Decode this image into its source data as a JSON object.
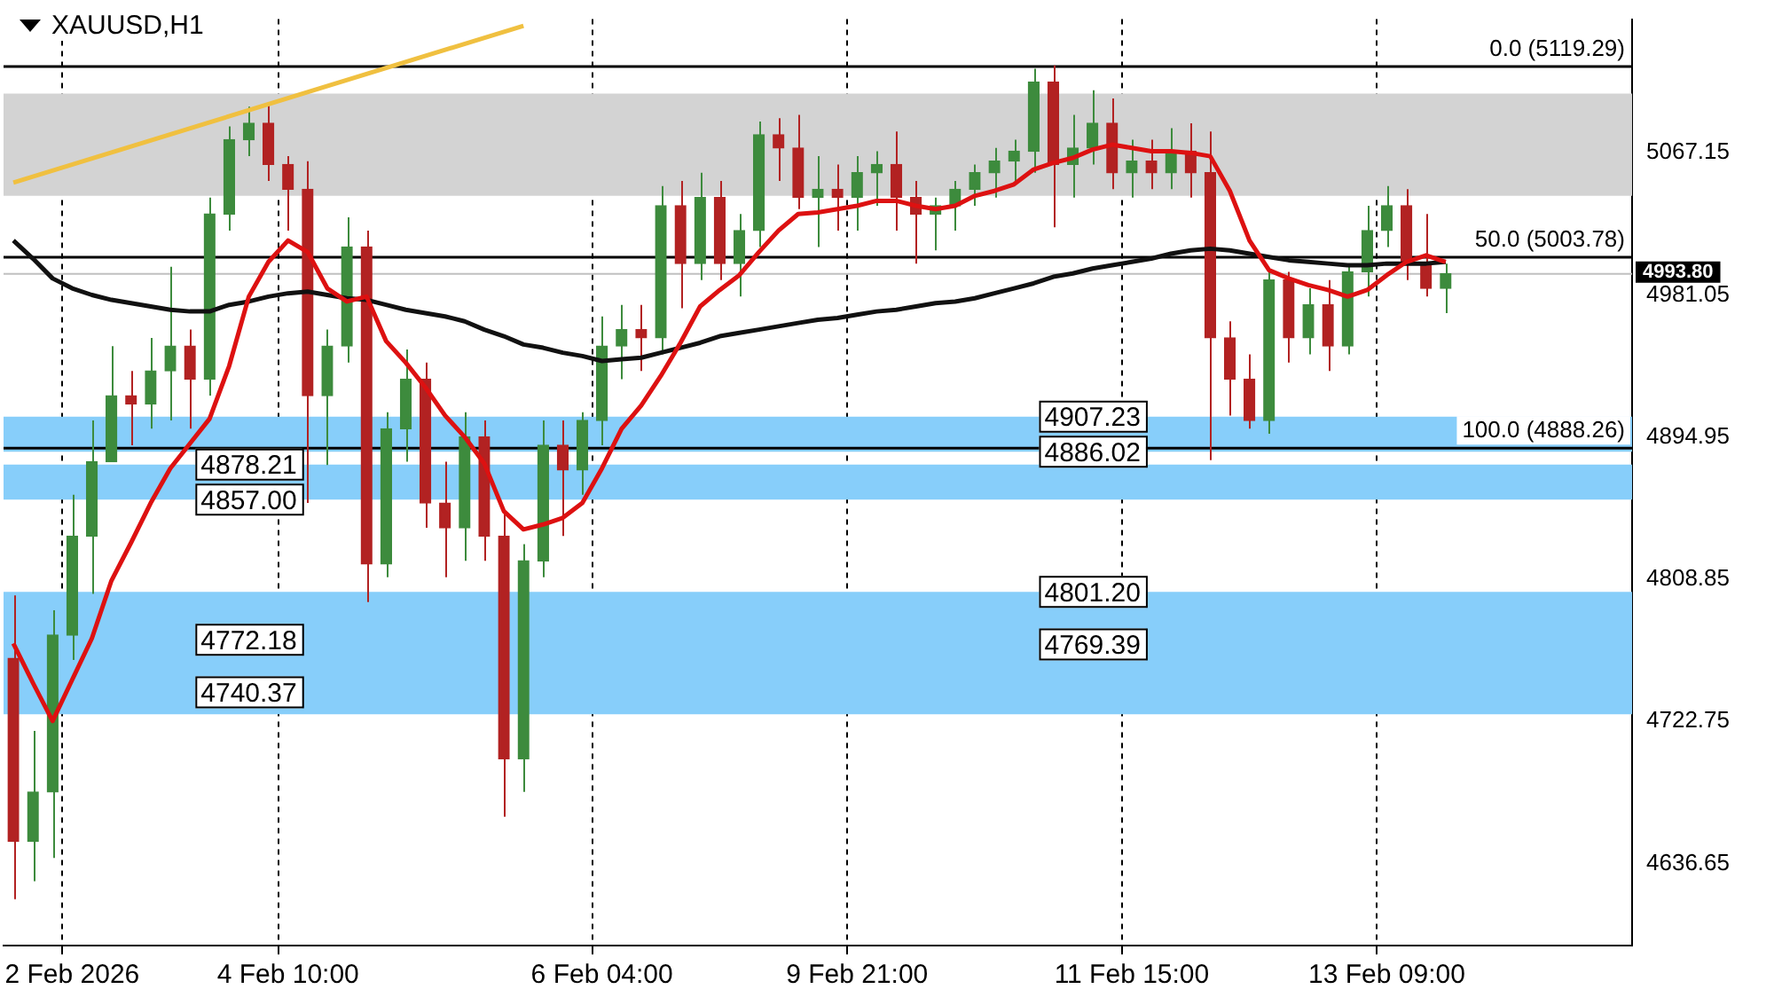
{
  "chart_data": {
    "type": "candlestick",
    "title": "XAUUSD,H1",
    "categories": [
      null,
      null,
      null,
      "2 Feb 2026",
      null,
      null,
      null,
      null,
      null,
      null,
      null,
      null,
      null,
      null,
      "4 Feb 10:00",
      null,
      null,
      null,
      null,
      null,
      null,
      null,
      null,
      null,
      null,
      null,
      null,
      null,
      null,
      null,
      "6 Feb 04:00",
      null,
      null,
      null,
      null,
      null,
      null,
      null,
      null,
      null,
      null,
      null,
      null,
      "9 Feb 21:00",
      null,
      null,
      null,
      null,
      null,
      null,
      null,
      null,
      null,
      null,
      null,
      null,
      null,
      "11 Feb 15:00",
      null,
      null,
      null,
      null,
      null,
      null,
      null,
      null,
      null,
      null,
      null,
      null,
      "13 Feb 09:00",
      null,
      null,
      null,
      null,
      null,
      null,
      null,
      null,
      null,
      null,
      null,
      null
    ],
    "ohlc": [
      [
        4761,
        4799,
        4615,
        4650
      ],
      [
        4650,
        4717,
        4626,
        4680
      ],
      [
        4680,
        4790,
        4640,
        4775
      ],
      [
        4775,
        4860,
        4760,
        4835
      ],
      [
        4835,
        4905,
        4800,
        4880
      ],
      [
        4880,
        4950,
        4880,
        4920
      ],
      [
        4920,
        4935,
        4890,
        4915
      ],
      [
        4915,
        4955,
        4900,
        4935
      ],
      [
        4935,
        4998,
        4905,
        4950
      ],
      [
        4950,
        4960,
        4900,
        4930
      ],
      [
        4930,
        5040,
        4920,
        5030
      ],
      [
        5030,
        5083,
        5020,
        5075
      ],
      [
        5075,
        5095,
        5065,
        5085
      ],
      [
        5085,
        5097,
        5050,
        5060
      ],
      [
        5060,
        5065,
        5020,
        5045
      ],
      [
        5045,
        5062,
        4855,
        4920
      ],
      [
        4920,
        4960,
        4878,
        4950
      ],
      [
        4950,
        5028,
        4940,
        5010
      ],
      [
        5010,
        5020,
        4795,
        4818
      ],
      [
        4818,
        4910,
        4810,
        4900
      ],
      [
        4900,
        4948,
        4880,
        4930
      ],
      [
        4930,
        4940,
        4840,
        4855
      ],
      [
        4855,
        4880,
        4810,
        4840
      ],
      [
        4840,
        4910,
        4820,
        4895
      ],
      [
        4895,
        4905,
        4820,
        4835
      ],
      [
        4835,
        4850,
        4665,
        4700
      ],
      [
        4700,
        4830,
        4680,
        4820
      ],
      [
        4820,
        4905,
        4810,
        4890
      ],
      [
        4890,
        4905,
        4835,
        4875
      ],
      [
        4875,
        4910,
        4860,
        4905
      ],
      [
        4905,
        4968,
        4890,
        4950
      ],
      [
        4950,
        4975,
        4930,
        4960
      ],
      [
        4960,
        4975,
        4935,
        4955
      ],
      [
        4955,
        5047,
        4945,
        5035
      ],
      [
        5035,
        5050,
        4973,
        5000
      ],
      [
        5000,
        5055,
        4990,
        5040
      ],
      [
        5040,
        5050,
        4990,
        5000
      ],
      [
        5000,
        5030,
        4980,
        5020
      ],
      [
        5020,
        5086,
        5010,
        5078
      ],
      [
        5078,
        5088,
        5050,
        5070
      ],
      [
        5070,
        5090,
        5033,
        5040
      ],
      [
        5040,
        5065,
        5010,
        5045
      ],
      [
        5045,
        5060,
        5020,
        5040
      ],
      [
        5040,
        5065,
        5020,
        5055
      ],
      [
        5055,
        5068,
        5035,
        5060
      ],
      [
        5060,
        5080,
        5020,
        5040
      ],
      [
        5040,
        5050,
        5000,
        5030
      ],
      [
        5030,
        5040,
        5008,
        5035
      ],
      [
        5035,
        5050,
        5020,
        5045
      ],
      [
        5045,
        5060,
        5035,
        5055
      ],
      [
        5055,
        5070,
        5040,
        5062
      ],
      [
        5062,
        5075,
        5050,
        5068
      ],
      [
        5068,
        5118,
        5055,
        5110
      ],
      [
        5110,
        5120,
        5022,
        5060
      ],
      [
        5060,
        5090,
        5040,
        5070
      ],
      [
        5070,
        5105,
        5060,
        5085
      ],
      [
        5085,
        5100,
        5045,
        5055
      ],
      [
        5055,
        5075,
        5040,
        5062
      ],
      [
        5062,
        5075,
        5045,
        5055
      ],
      [
        5055,
        5082,
        5045,
        5068
      ],
      [
        5068,
        5085,
        5040,
        5055
      ],
      [
        5055,
        5080,
        4881,
        4955
      ],
      [
        4955,
        4965,
        4908,
        4930
      ],
      [
        4930,
        4945,
        4900,
        4905
      ],
      [
        4905,
        4995,
        4897,
        4990
      ],
      [
        4990,
        4995,
        4940,
        4955
      ],
      [
        4955,
        4985,
        4945,
        4975
      ],
      [
        4975,
        4990,
        4935,
        4950
      ],
      [
        4950,
        5000,
        4945,
        4995
      ],
      [
        4995,
        5035,
        4980,
        5020
      ],
      [
        5020,
        5047,
        5010,
        5035
      ],
      [
        5035,
        5045,
        4990,
        5000
      ],
      [
        5000,
        5030,
        4980,
        4985
      ],
      [
        4985,
        5000,
        4970,
        4993.8
      ],
      null,
      null,
      null,
      null,
      null,
      null,
      null,
      null,
      null
    ],
    "colors": [
      "#b22222",
      "#3d8b3d",
      "#3d8b3d",
      "#3d8b3d",
      "#3d8b3d",
      "#3d8b3d",
      "#b22222",
      "#3d8b3d",
      "#3d8b3d",
      "#b22222",
      "#3d8b3d",
      "#3d8b3d",
      "#3d8b3d",
      "#b22222",
      "#b22222",
      "#b22222",
      "#3d8b3d",
      "#3d8b3d",
      "#b22222",
      "#3d8b3d",
      "#3d8b3d",
      "#b22222",
      "#b22222",
      "#3d8b3d",
      "#b22222",
      "#b22222",
      "#3d8b3d",
      "#3d8b3d",
      "#b22222",
      "#3d8b3d",
      "#3d8b3d",
      "#3d8b3d",
      "#b22222",
      "#3d8b3d",
      "#b22222",
      "#3d8b3d",
      "#b22222",
      "#3d8b3d",
      "#3d8b3d",
      "#b22222",
      "#b22222",
      "#3d8b3d",
      "#b22222",
      "#3d8b3d",
      "#3d8b3d",
      "#b22222",
      "#b22222",
      "#3d8b3d",
      "#3d8b3d",
      "#3d8b3d",
      "#3d8b3d",
      "#3d8b3d",
      "#3d8b3d",
      "#b22222",
      "#3d8b3d",
      "#3d8b3d",
      "#b22222",
      "#3d8b3d",
      "#b22222",
      "#3d8b3d",
      "#b22222",
      "#b22222",
      "#b22222",
      "#b22222",
      "#3d8b3d",
      "#b22222",
      "#3d8b3d",
      "#b22222",
      "#3d8b3d",
      "#3d8b3d",
      "#3d8b3d",
      "#b22222",
      "#b22222",
      "#3d8b3d",
      null,
      null,
      null,
      null,
      null,
      null,
      null,
      null,
      null
    ],
    "series": [
      {
        "type": "line",
        "color": "#dd1111",
        "values": [
          4770,
          4746,
          4723,
          4748,
          4773,
          4808,
          4831,
          4855,
          4876,
          4891,
          4906,
          4938,
          4980,
          5001,
          5014,
          5007,
          4985,
          4977,
          4980,
          4953,
          4940,
          4925,
          4908,
          4895,
          4879,
          4850,
          4839,
          4842,
          4846,
          4855,
          4876,
          4900,
          4914,
          4932,
          4952,
          4974,
          4984,
          4993,
          5007,
          5020,
          5030,
          5031,
          5033,
          5035,
          5038,
          5038,
          5035,
          5033,
          5035,
          5041,
          5044,
          5048,
          5057,
          5061,
          5064,
          5069,
          5072,
          5070,
          5068,
          5068,
          5067,
          5065,
          5044,
          5014,
          4996,
          4991,
          4987,
          4984,
          4980,
          4984,
          4993,
          5001,
          5005,
          5001,
          null,
          null,
          null,
          null,
          null,
          null,
          null,
          null,
          null
        ]
      },
      {
        "type": "line",
        "color": "#111111",
        "values": [
          5014,
          5003,
          4991,
          4985,
          4981,
          4978,
          4976,
          4974,
          4972,
          4971,
          4971,
          4975,
          4977,
          4980,
          4982,
          4983,
          4981,
          4979,
          4978,
          4975,
          4972,
          4970,
          4968,
          4965,
          4960,
          4956,
          4951,
          4949,
          4946,
          4944,
          4941,
          4942,
          4943,
          4946,
          4949,
          4952,
          4956,
          4958,
          4960,
          4962,
          4964,
          4966,
          4967,
          4969,
          4971,
          4972,
          4974,
          4976,
          4977,
          4979,
          4982,
          4985,
          4988,
          4992,
          4994,
          4997,
          4999,
          5001,
          5003,
          5006,
          5008,
          5009,
          5008,
          5006,
          5004,
          5002,
          5001,
          5000,
          4999,
          4999,
          5000,
          5000,
          5000,
          5001,
          null,
          null,
          null,
          null,
          null,
          null,
          null,
          null,
          null
        ]
      },
      {
        "type": "line",
        "color": "#f0c040",
        "values": [
          5049,
          null,
          null,
          null,
          null,
          null,
          null,
          null,
          null,
          null,
          null,
          null,
          null,
          null,
          null,
          null,
          null,
          null,
          null,
          null,
          null,
          null,
          null,
          null,
          null,
          null,
          5144,
          null,
          null,
          null,
          null,
          null,
          null,
          null,
          null,
          null,
          null,
          null,
          null,
          null,
          null,
          null,
          null,
          null,
          null,
          null,
          null,
          null,
          null,
          null,
          null,
          null,
          null,
          null,
          null,
          null,
          null,
          null,
          null,
          null,
          null,
          null,
          null,
          null,
          null,
          null,
          null,
          null,
          null,
          null,
          null,
          null,
          null,
          null,
          null,
          null,
          null,
          null,
          null,
          null,
          null,
          null,
          null
        ]
      }
    ],
    "ylim": [
      4587,
      5148
    ],
    "yticks": [
      4636.65,
      4722.75,
      4808.85,
      4894.95,
      4981.05,
      5067.15
    ],
    "bands": [
      {
        "axis": "y",
        "from": 5041,
        "to": 5103,
        "color": "#d3d3d3"
      },
      {
        "axis": "y",
        "from": 4727,
        "to": 4759,
        "color": "#87cefa"
      },
      {
        "axis": "y",
        "from": 4857.0,
        "to": 4878.21,
        "color": "#87cefa"
      },
      {
        "axis": "y",
        "from": 4740.37,
        "to": 4772.18,
        "color": "#87cefa"
      },
      {
        "axis": "y",
        "from": 4886.02,
        "to": 4907.23,
        "color": "#87cefa"
      },
      {
        "axis": "y",
        "from": 4769.39,
        "to": 4801.2,
        "color": "#87cefa"
      }
    ],
    "ref_lines": [
      {
        "axis": "y",
        "value": 5119.29,
        "label": "0.0 (5119.29)"
      },
      {
        "axis": "y",
        "value": 5003.78,
        "label": "50.0 (5003.78)"
      },
      {
        "axis": "y",
        "value": 4888.26,
        "label": "100.0 (4888.26)"
      },
      {
        "axis": "y",
        "value": 4993.8,
        "label": "4993.80",
        "color": "#c0c0c0"
      }
    ],
    "annotations": [
      {
        "text": "4878.21",
        "x": "4 Feb 10:00",
        "y": 4878.21
      },
      {
        "text": "4857.00",
        "x": "4 Feb 10:00",
        "y": 4857.0
      },
      {
        "text": "4772.18",
        "x": "4 Feb 10:00",
        "y": 4772.18
      },
      {
        "text": "4740.37",
        "x": "4 Feb 10:00",
        "y": 4740.37
      },
      {
        "text": "4907.23",
        "x": "11 Feb 15:00",
        "y": 4907.23
      },
      {
        "text": "4886.02",
        "x": "11 Feb 15:00",
        "y": 4886.02
      },
      {
        "text": "4801.20",
        "x": "11 Feb 15:00",
        "y": 4801.2
      },
      {
        "text": "4769.39",
        "x": "11 Feb 15:00",
        "y": 4769.39
      }
    ],
    "grid": "x",
    "legend": false
  }
}
